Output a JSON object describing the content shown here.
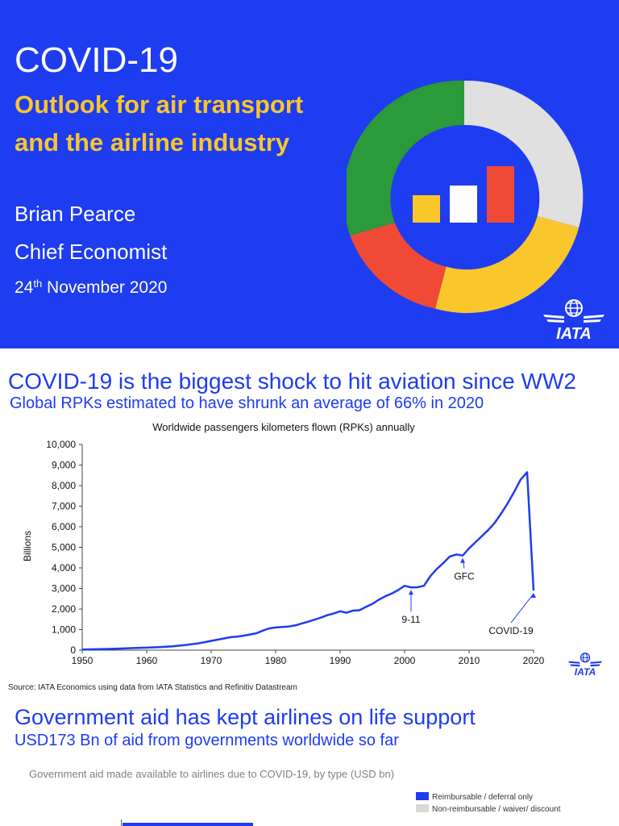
{
  "slide1": {
    "title": "COVID-19",
    "subtitle": "Outlook for air transport and the airline industry",
    "name": "Brian Pearce",
    "role": "Chief Economist",
    "date_day": "24",
    "date_suffix": "th",
    "date_rest": " November 2020",
    "logo_text": "IATA",
    "colors": {
      "background": "#1e3cf0",
      "accent": "#f9c62c",
      "green": "#2a9a3a",
      "red": "#f04a36",
      "grey": "#e0e0e0"
    }
  },
  "slide2": {
    "title": "COVID-19 is the biggest shock to hit aviation since WW2",
    "subtitle": "Global RPKs estimated to have shrunk an average of 66% in 2020",
    "source": "Source: IATA Economics using data from IATA Statistics and Refinitiv Datastream",
    "logo_text": "IATA"
  },
  "chart_data": {
    "type": "line",
    "title": "Worldwide passengers kilometers flown (RPKs) annually",
    "ylabel": "Billions",
    "xlabel": "",
    "xlim": [
      1950,
      2020
    ],
    "ylim": [
      0,
      10000
    ],
    "x_ticks": [
      1950,
      1960,
      1970,
      1980,
      1990,
      2000,
      2010,
      2020
    ],
    "y_ticks": [
      0,
      1000,
      2000,
      3000,
      4000,
      5000,
      6000,
      7000,
      8000,
      9000,
      10000
    ],
    "y_tick_labels": [
      "0",
      "1,000",
      "2,000",
      "3,000",
      "4,000",
      "5,000",
      "6,000",
      "7,000",
      "8,000",
      "9,000",
      "10,000"
    ],
    "grid": false,
    "color": "#1e3cf0",
    "series": [
      {
        "x": [
          1950,
          1952,
          1954,
          1956,
          1958,
          1960,
          1962,
          1964,
          1966,
          1968,
          1970,
          1971,
          1972,
          1973,
          1974,
          1975,
          1976,
          1977,
          1978,
          1979,
          1980,
          1981,
          1982,
          1983,
          1984,
          1985,
          1986,
          1987,
          1988,
          1989,
          1990,
          1991,
          1992,
          1993,
          1994,
          1995,
          1996,
          1997,
          1998,
          1999,
          2000,
          2001,
          2002,
          2003,
          2004,
          2005,
          2006,
          2007,
          2008,
          2009,
          2010,
          2011,
          2012,
          2013,
          2014,
          2015,
          2016,
          2017,
          2018,
          2019,
          2020
        ],
        "y": [
          30,
          45,
          60,
          80,
          100,
          120,
          150,
          190,
          250,
          330,
          450,
          510,
          570,
          630,
          660,
          700,
          760,
          820,
          950,
          1060,
          1100,
          1130,
          1150,
          1200,
          1290,
          1380,
          1480,
          1580,
          1700,
          1780,
          1890,
          1820,
          1920,
          1940,
          2100,
          2250,
          2450,
          2620,
          2750,
          2920,
          3130,
          3050,
          3060,
          3130,
          3600,
          3950,
          4230,
          4550,
          4650,
          4600,
          4950,
          5250,
          5550,
          5850,
          6200,
          6650,
          7150,
          7700,
          8300,
          8650,
          2900
        ]
      }
    ],
    "annotations": [
      {
        "label": "9-11",
        "x": 2001,
        "y": 3050
      },
      {
        "label": "GFC",
        "x": 2009,
        "y": 4600
      },
      {
        "label": "COVID-19",
        "x": 2020,
        "y": 2900
      }
    ]
  },
  "slide3": {
    "title": "Government aid has kept airlines on life support",
    "subtitle": "USD173 Bn of aid from governments worldwide so far",
    "chart_title": "Government aid made available to airlines due to COVID-19, by type (USD bn)",
    "legend": [
      {
        "label": "Reimbursable / deferral only",
        "color": "#1e3cf0"
      },
      {
        "label": "Non-reimbursable / waiver/ discount",
        "color": "#d9d9d9"
      }
    ]
  }
}
